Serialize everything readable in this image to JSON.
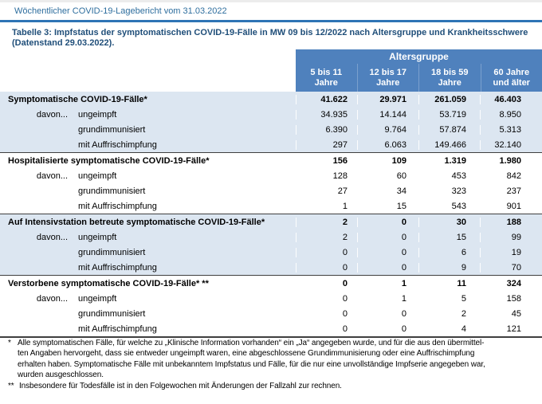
{
  "header": {
    "report_title": "Wöchentlicher COVID-19-Lagebericht vom 31.03.2022",
    "caption_line1": "Tabelle 3: Impfstatus der symptomatischen COVID-19-Fälle in MW 09 bis 12/2022 nach Altersgruppe und Krankheitsschwere",
    "caption_line2": "(Datenstand 29.03.2022)."
  },
  "table": {
    "group_header": "Altersgruppe",
    "columns": [
      {
        "line1": "5 bis 11",
        "line2": "Jahre"
      },
      {
        "line1": "12 bis 17",
        "line2": "Jahre"
      },
      {
        "line1": "18 bis 59",
        "line2": "Jahre"
      },
      {
        "line1": "60 Jahre",
        "line2": "und älter"
      }
    ],
    "sections": [
      {
        "title": "Symptomatische COVID-19-Fälle*",
        "totals": [
          "41.622",
          "29.971",
          "261.059",
          "46.403"
        ],
        "rows": [
          {
            "prefix": "davon...",
            "label": "ungeimpft",
            "values": [
              "34.935",
              "14.144",
              "53.719",
              "8.950"
            ]
          },
          {
            "prefix": "",
            "label": "grundimmunisiert",
            "values": [
              "6.390",
              "9.764",
              "57.874",
              "5.313"
            ]
          },
          {
            "prefix": "",
            "label": "mit Auffrischimpfung",
            "values": [
              "297",
              "6.063",
              "149.466",
              "32.140"
            ]
          }
        ]
      },
      {
        "title": "Hospitalisierte symptomatische COVID-19-Fälle*",
        "totals": [
          "156",
          "109",
          "1.319",
          "1.980"
        ],
        "rows": [
          {
            "prefix": "davon...",
            "label": "ungeimpft",
            "values": [
              "128",
              "60",
              "453",
              "842"
            ]
          },
          {
            "prefix": "",
            "label": "grundimmunisiert",
            "values": [
              "27",
              "34",
              "323",
              "237"
            ]
          },
          {
            "prefix": "",
            "label": "mit Auffrischimpfung",
            "values": [
              "1",
              "15",
              "543",
              "901"
            ]
          }
        ]
      },
      {
        "title": "Auf Intensivstation betreute symptomatische COVID-19-Fälle*",
        "totals": [
          "2",
          "0",
          "30",
          "188"
        ],
        "rows": [
          {
            "prefix": "davon...",
            "label": "ungeimpft",
            "values": [
              "2",
              "0",
              "15",
              "99"
            ]
          },
          {
            "prefix": "",
            "label": "grundimmunisiert",
            "values": [
              "0",
              "0",
              "6",
              "19"
            ]
          },
          {
            "prefix": "",
            "label": "mit Auffrischimpfung",
            "values": [
              "0",
              "0",
              "9",
              "70"
            ]
          }
        ]
      },
      {
        "title": "Verstorbene symptomatische COVID-19-Fälle* **",
        "totals": [
          "0",
          "1",
          "11",
          "324"
        ],
        "rows": [
          {
            "prefix": "davon...",
            "label": "ungeimpft",
            "values": [
              "0",
              "1",
              "5",
              "158"
            ]
          },
          {
            "prefix": "",
            "label": "grundimmunisiert",
            "values": [
              "0",
              "0",
              "2",
              "45"
            ]
          },
          {
            "prefix": "",
            "label": "mit Auffrischimpfung",
            "values": [
              "0",
              "0",
              "4",
              "121"
            ]
          }
        ]
      }
    ]
  },
  "footnotes": {
    "fn1": {
      "marker": "*",
      "lines": [
        "Alle symptomatischen Fälle, für welche zu „Klinische Information vorhanden“ ein „Ja“ angegeben wurde, und für die aus den übermittel-",
        "ten Angaben hervorgeht, dass sie entweder ungeimpft waren, eine abgeschlossene Grundimmunisierung oder eine Auffrischimpfung",
        "erhalten haben. Symptomatische Fälle mit unbekanntem Impfstatus und Fälle, für die nur eine unvollständige Impfserie angegeben war,",
        "wurden ausgeschlossen."
      ]
    },
    "fn2": {
      "marker": "**",
      "line": "Insbesondere für Todesfälle ist in den Folgewochen mit Änderungen der Fallzahl zur rechnen."
    }
  },
  "colors": {
    "header_blue": "#4f81bd",
    "row_light_blue": "#dce6f1",
    "title_blue": "#2e6e9e",
    "caption_blue": "#1f4e79",
    "rule_blue": "#2e74b5"
  }
}
